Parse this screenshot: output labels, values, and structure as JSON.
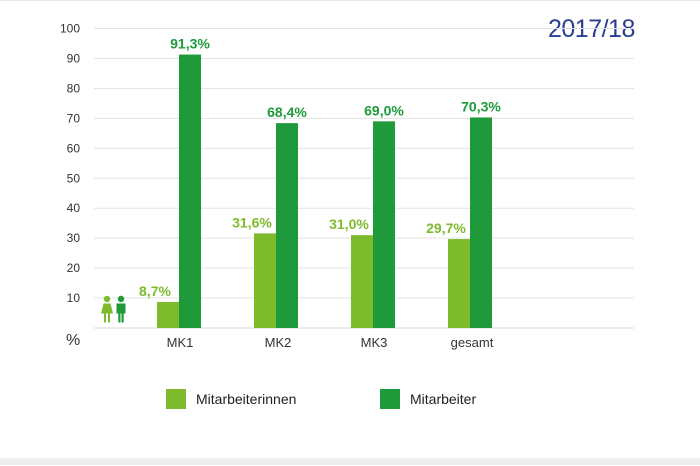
{
  "chart_data": {
    "type": "bar",
    "title": "2017/18",
    "ylabel": "%",
    "ylim": [
      0,
      100
    ],
    "yticks": [
      10,
      20,
      30,
      40,
      50,
      60,
      70,
      80,
      90,
      100
    ],
    "categories": [
      "MK1",
      "MK2",
      "MK3",
      "gesamt"
    ],
    "series": [
      {
        "name": "Mitarbeiterinnen",
        "color": "#7dbb2d",
        "values": [
          8.7,
          31.6,
          31.0,
          29.7
        ],
        "labels": [
          "8,7%",
          "31,6%",
          "31,0%",
          "29,7%"
        ]
      },
      {
        "name": "Mitarbeiter",
        "color": "#1e9a3a",
        "values": [
          91.3,
          68.4,
          69.0,
          70.3
        ],
        "labels": [
          "91,3%",
          "68,4%",
          "69,0%",
          "70,3%"
        ]
      }
    ],
    "legend": "bottom",
    "grid": true
  },
  "icons": {
    "female": "woman-icon",
    "male": "man-icon"
  }
}
